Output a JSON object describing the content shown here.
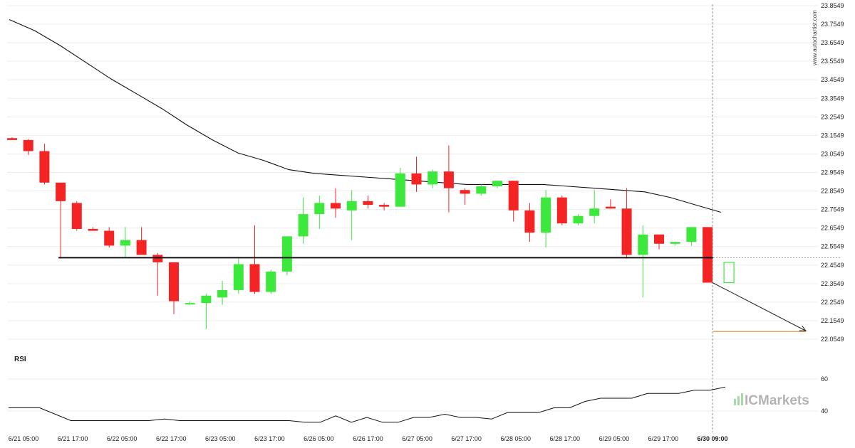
{
  "chart_data": {
    "type": "candlestick",
    "watermark": "www.autochartist.com",
    "brand": "ICMarkets",
    "price_axis": {
      "min": 22.0549,
      "max": 23.8549,
      "ticks": [
        "23.8549",
        "23.7549",
        "23.6549",
        "23.5549",
        "23.4549",
        "23.3549",
        "23.2549",
        "23.1549",
        "23.0549",
        "22.9549",
        "22.8549",
        "22.7549",
        "22.6549",
        "22.5549",
        "22.4549",
        "22.3549",
        "22.2549",
        "22.1549",
        "22.0549"
      ]
    },
    "time_axis": {
      "labels": [
        "6/21 05:00",
        "6/21 17:00",
        "6/22 05:00",
        "6/22 17:00",
        "6/23 05:00",
        "6/23 17:00",
        "6/26 05:00",
        "6/26 17:00",
        "6/27 05:00",
        "6/27 17:00",
        "6/28 05:00",
        "6/28 17:00",
        "6/29 05:00",
        "6/29 17:00",
        "6/30 09:00"
      ],
      "highlighted": "6/30 09:00"
    },
    "candles": [
      {
        "o": 23.14,
        "h": 23.145,
        "l": 23.13,
        "c": 23.13
      },
      {
        "o": 23.13,
        "h": 23.135,
        "l": 23.05,
        "c": 23.07
      },
      {
        "o": 23.07,
        "h": 23.11,
        "l": 22.89,
        "c": 22.9
      },
      {
        "o": 22.9,
        "h": 22.9,
        "l": 22.49,
        "c": 22.8
      },
      {
        "o": 22.79,
        "h": 22.8,
        "l": 22.64,
        "c": 22.65
      },
      {
        "o": 22.65,
        "h": 22.66,
        "l": 22.64,
        "c": 22.64
      },
      {
        "o": 22.64,
        "h": 22.66,
        "l": 22.55,
        "c": 22.56
      },
      {
        "o": 22.56,
        "h": 22.66,
        "l": 22.5,
        "c": 22.59
      },
      {
        "o": 22.59,
        "h": 22.66,
        "l": 22.51,
        "c": 22.51
      },
      {
        "o": 22.51,
        "h": 22.52,
        "l": 22.29,
        "c": 22.47
      },
      {
        "o": 22.47,
        "h": 22.47,
        "l": 22.19,
        "c": 22.26
      },
      {
        "o": 22.25,
        "h": 22.26,
        "l": 22.24,
        "c": 22.25
      },
      {
        "o": 22.25,
        "h": 22.3,
        "l": 22.11,
        "c": 22.29
      },
      {
        "o": 22.28,
        "h": 22.37,
        "l": 22.24,
        "c": 22.32
      },
      {
        "o": 22.32,
        "h": 22.49,
        "l": 22.3,
        "c": 22.46
      },
      {
        "o": 22.46,
        "h": 22.67,
        "l": 22.3,
        "c": 22.31
      },
      {
        "o": 22.31,
        "h": 22.43,
        "l": 22.3,
        "c": 22.42
      },
      {
        "o": 22.42,
        "h": 22.61,
        "l": 22.4,
        "c": 22.61
      },
      {
        "o": 22.61,
        "h": 22.82,
        "l": 22.57,
        "c": 22.73
      },
      {
        "o": 22.73,
        "h": 22.83,
        "l": 22.65,
        "c": 22.79
      },
      {
        "o": 22.79,
        "h": 22.87,
        "l": 22.71,
        "c": 22.76
      },
      {
        "o": 22.75,
        "h": 22.86,
        "l": 22.59,
        "c": 22.8
      },
      {
        "o": 22.8,
        "h": 22.83,
        "l": 22.76,
        "c": 22.78
      },
      {
        "o": 22.78,
        "h": 22.79,
        "l": 22.75,
        "c": 22.77
      },
      {
        "o": 22.77,
        "h": 22.98,
        "l": 22.77,
        "c": 22.95
      },
      {
        "o": 22.95,
        "h": 23.04,
        "l": 22.85,
        "c": 22.89
      },
      {
        "o": 22.89,
        "h": 22.97,
        "l": 22.87,
        "c": 22.96
      },
      {
        "o": 22.96,
        "h": 23.1,
        "l": 22.74,
        "c": 22.87
      },
      {
        "o": 22.86,
        "h": 22.87,
        "l": 22.78,
        "c": 22.84
      },
      {
        "o": 22.84,
        "h": 22.89,
        "l": 22.83,
        "c": 22.88
      },
      {
        "o": 22.88,
        "h": 22.91,
        "l": 22.87,
        "c": 22.91
      },
      {
        "o": 22.91,
        "h": 22.91,
        "l": 22.69,
        "c": 22.75
      },
      {
        "o": 22.75,
        "h": 22.79,
        "l": 22.58,
        "c": 22.63
      },
      {
        "o": 22.63,
        "h": 22.86,
        "l": 22.55,
        "c": 22.82
      },
      {
        "o": 22.82,
        "h": 22.83,
        "l": 22.67,
        "c": 22.68
      },
      {
        "o": 22.68,
        "h": 22.73,
        "l": 22.67,
        "c": 22.72
      },
      {
        "o": 22.72,
        "h": 22.86,
        "l": 22.68,
        "c": 22.76
      },
      {
        "o": 22.77,
        "h": 22.81,
        "l": 22.76,
        "c": 22.76
      },
      {
        "o": 22.76,
        "h": 22.87,
        "l": 22.49,
        "c": 22.51
      },
      {
        "o": 22.51,
        "h": 22.67,
        "l": 22.28,
        "c": 22.62
      },
      {
        "o": 22.62,
        "h": 22.62,
        "l": 22.54,
        "c": 22.57
      },
      {
        "o": 22.57,
        "h": 22.58,
        "l": 22.56,
        "c": 22.58
      },
      {
        "o": 22.58,
        "h": 22.66,
        "l": 22.56,
        "c": 22.66
      },
      {
        "o": 22.66,
        "h": 22.66,
        "l": 22.36,
        "c": 22.36
      }
    ],
    "moving_average": [
      23.78,
      23.72,
      23.64,
      23.55,
      23.46,
      23.38,
      23.3,
      23.21,
      23.13,
      23.06,
      23.02,
      22.97,
      22.95,
      22.94,
      22.93,
      22.92,
      22.91,
      22.9,
      22.89,
      22.89,
      22.89,
      22.89,
      22.88,
      22.87,
      22.86,
      22.85,
      22.82,
      22.78,
      22.74
    ],
    "ma_start_index": 0,
    "ma_end_index": 44,
    "support_level": {
      "value": 22.495,
      "from_index": 3,
      "to_index": 43
    },
    "forecast": {
      "from_index": 43,
      "from_value": 22.36,
      "to_value": 22.1,
      "target": 22.1
    },
    "projected_candle": {
      "o": 22.36,
      "h": 22.47,
      "l": 22.36,
      "c": 22.47
    },
    "colors": {
      "up": "#3de83d",
      "down": "#f42424",
      "target_line": "#e8a060",
      "ma_line": "#111111",
      "support_line": "#111111"
    },
    "rsi": {
      "label": "RSI",
      "ticks": [
        "60",
        "40"
      ],
      "range": [
        30,
        70
      ],
      "values": [
        42,
        42,
        42,
        38,
        34,
        34,
        34,
        34,
        34,
        34,
        35,
        34,
        34,
        34,
        34,
        34,
        34,
        34,
        34,
        33,
        33,
        37,
        33,
        36,
        33,
        33,
        36,
        36,
        38,
        36,
        36,
        35,
        39,
        39,
        39,
        42,
        42,
        46,
        48,
        48,
        48,
        51,
        51,
        51,
        53,
        53,
        55
      ],
      "end_index": 44
    }
  }
}
